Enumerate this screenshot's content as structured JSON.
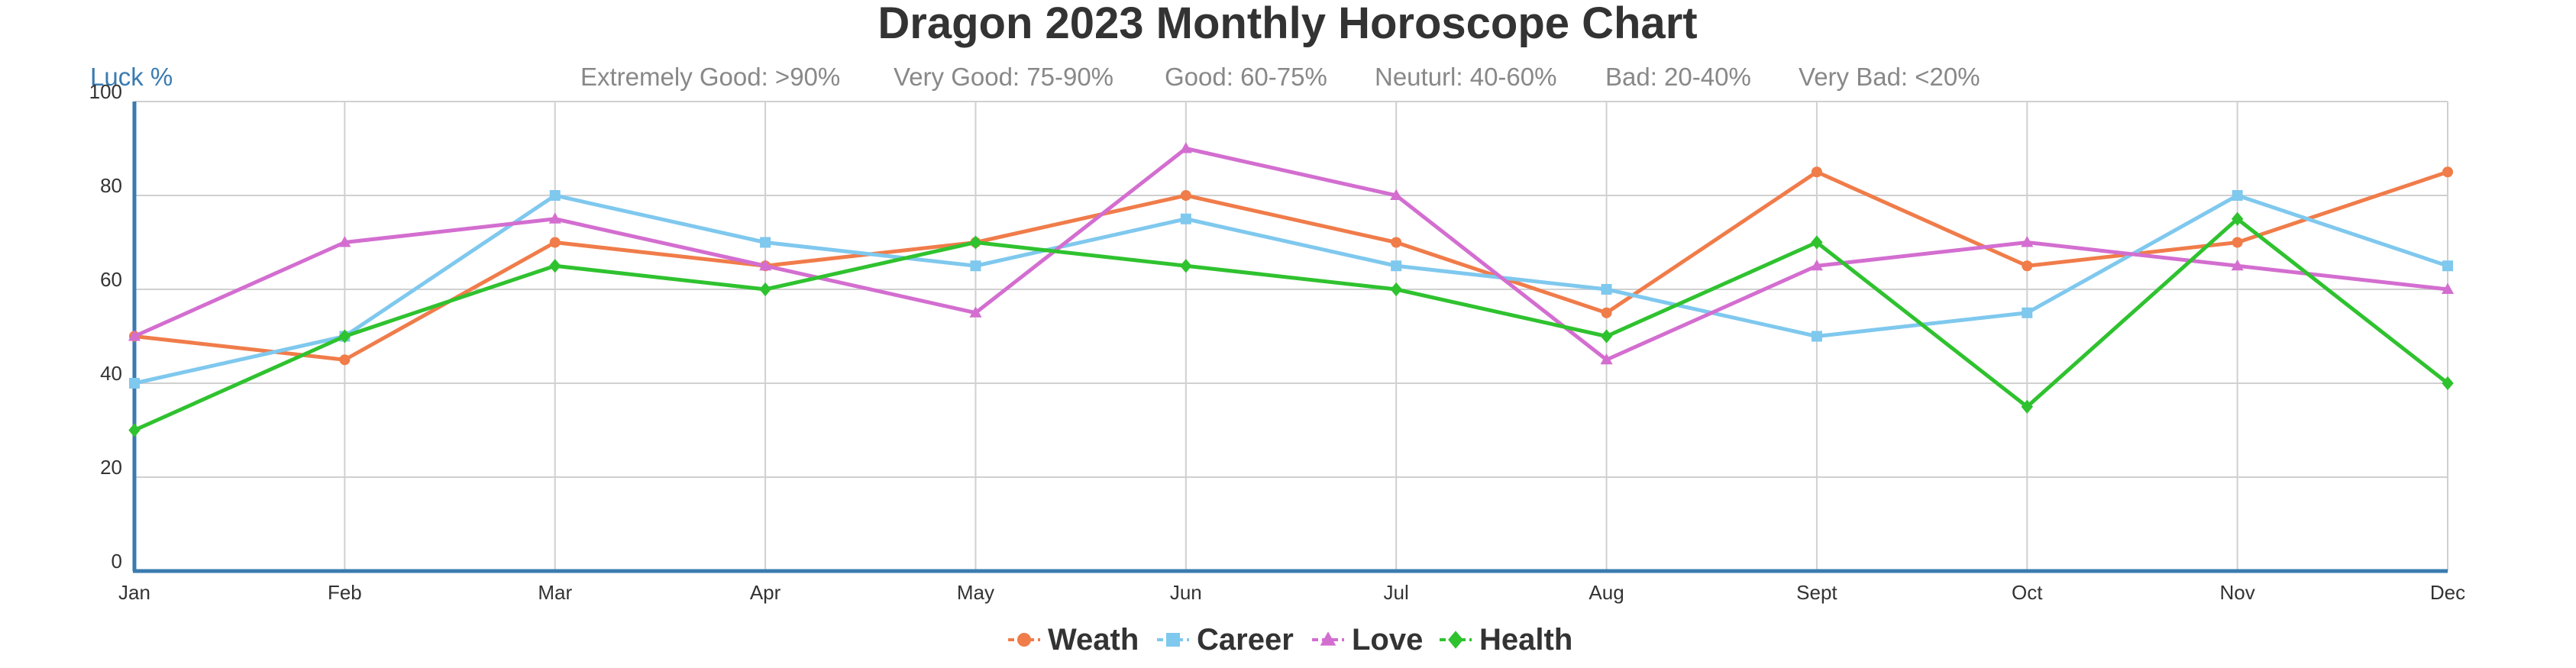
{
  "chart_data": {
    "type": "line",
    "title": "Dragon 2023 Monthly Horoscope Chart",
    "ylabel": "Luck %",
    "xlabel": "",
    "subtitle_items": [
      "Extremely Good: >90%",
      "Very Good: 75-90%",
      "Good: 60-75%",
      "Neuturl: 40-60%",
      "Bad: 20-40%",
      "Very Bad: <20%"
    ],
    "categories": [
      "Jan",
      "Feb",
      "Mar",
      "Apr",
      "May",
      "Jun",
      "Jul",
      "Aug",
      "Sept",
      "Oct",
      "Nov",
      "Dec"
    ],
    "ylim": [
      0,
      100
    ],
    "yticks": [
      0,
      20,
      40,
      60,
      80,
      100
    ],
    "grid": true,
    "legend_position": "bottom",
    "series": [
      {
        "name": "Weath",
        "color": "#f07c4a",
        "marker": "circle",
        "values": [
          50,
          45,
          70,
          65,
          70,
          80,
          70,
          55,
          85,
          65,
          70,
          85
        ]
      },
      {
        "name": "Career",
        "color": "#7fc8ee",
        "marker": "square",
        "values": [
          40,
          50,
          80,
          70,
          65,
          75,
          65,
          60,
          50,
          55,
          80,
          65
        ]
      },
      {
        "name": "Love",
        "color": "#d36ed0",
        "marker": "triangle",
        "values": [
          50,
          70,
          75,
          65,
          55,
          90,
          80,
          45,
          65,
          70,
          65,
          60
        ]
      },
      {
        "name": "Health",
        "color": "#2fc22f",
        "marker": "diamond",
        "values": [
          30,
          50,
          65,
          60,
          70,
          65,
          60,
          50,
          70,
          35,
          75,
          40
        ]
      }
    ]
  }
}
